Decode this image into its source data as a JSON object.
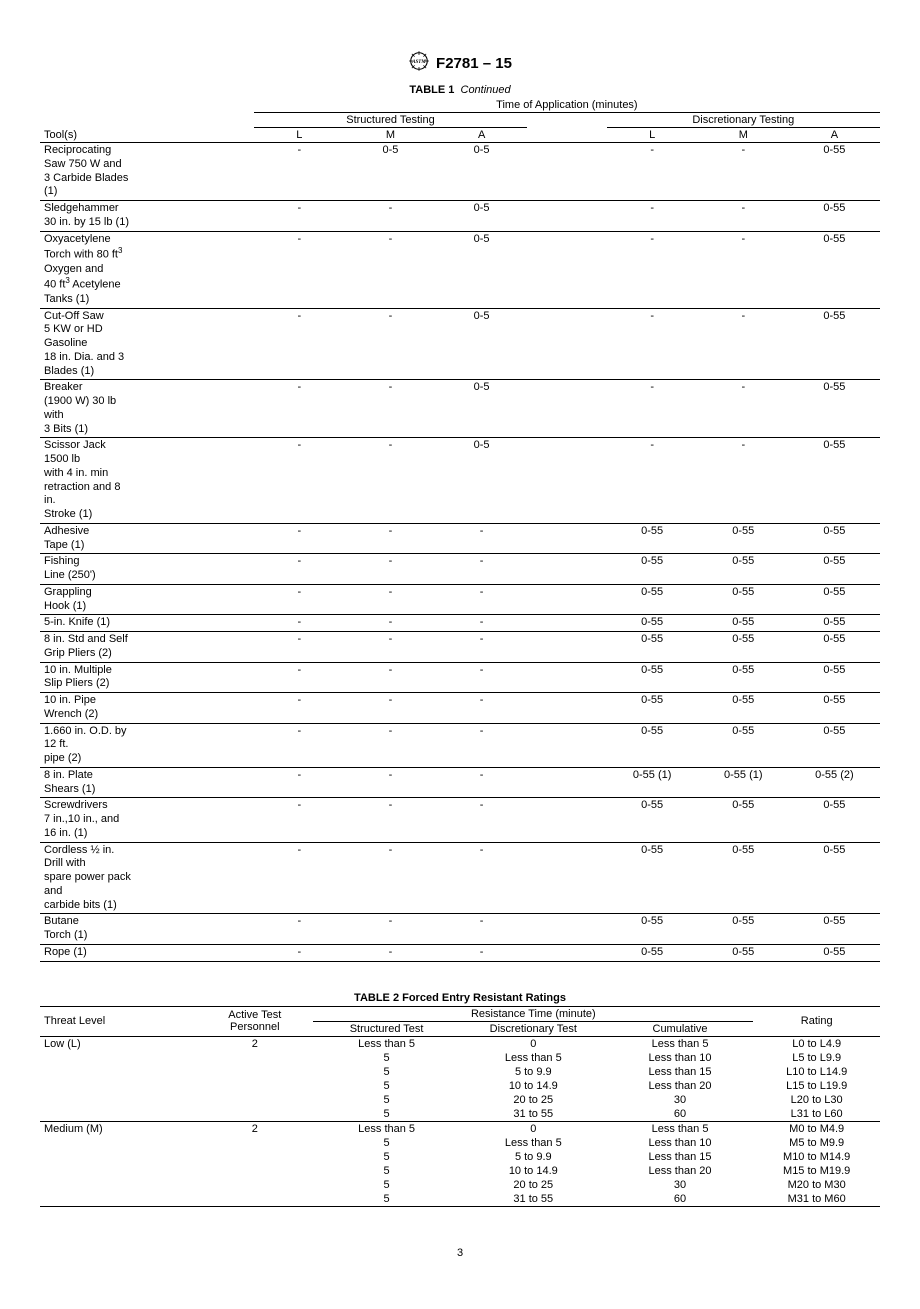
{
  "header": {
    "doc_id": "F2781 – 15"
  },
  "table1": {
    "caption_label": "TABLE 1",
    "caption_cont": "Continued",
    "super_header": "Time of Application (minutes)",
    "group_headers": {
      "structured": "Structured Testing",
      "discretionary": "Discretionary Testing"
    },
    "col_headers": {
      "tool": "Tool(s)",
      "L": "L",
      "M": "M",
      "A": "A"
    },
    "rows": [
      {
        "tool": [
          "Reciprocating",
          "Saw 750 W and",
          "3 Carbide Blades",
          "(1)"
        ],
        "s": [
          "-",
          "0-5",
          "0-5"
        ],
        "d": [
          "-",
          "-",
          "0-55"
        ]
      },
      {
        "tool": [
          "Sledgehammer",
          "30 in. by 15 lb (1)"
        ],
        "s": [
          "-",
          "-",
          "0-5"
        ],
        "d": [
          "-",
          "-",
          "0-55"
        ]
      },
      {
        "tool": [
          "Oxyacetylene",
          "Torch with 80 ft³",
          "Oxygen and",
          "40 ft³ Acetylene",
          "Tanks (1)"
        ],
        "s": [
          "-",
          "-",
          "0-5"
        ],
        "d": [
          "-",
          "-",
          "0-55"
        ]
      },
      {
        "tool": [
          "Cut-Off Saw",
          "5 KW or HD",
          "Gasoline",
          "18 in. Dia. and 3",
          "Blades (1)"
        ],
        "s": [
          "-",
          "-",
          "0-5"
        ],
        "d": [
          "-",
          "-",
          "0-55"
        ]
      },
      {
        "tool": [
          "Breaker",
          "(1900 W) 30 lb",
          "with",
          "3 Bits (1)"
        ],
        "s": [
          "-",
          "-",
          "0-5"
        ],
        "d": [
          "-",
          "-",
          "0-55"
        ]
      },
      {
        "tool": [
          "Scissor Jack",
          "1500 lb",
          "with 4 in. min",
          "retraction and 8",
          "in.",
          "Stroke (1)"
        ],
        "s": [
          "-",
          "-",
          "0-5"
        ],
        "d": [
          "-",
          "-",
          "0-55"
        ]
      },
      {
        "tool": [
          "Adhesive",
          "Tape (1)"
        ],
        "s": [
          "-",
          "-",
          "-"
        ],
        "d": [
          "0-55",
          "0-55",
          "0-55"
        ]
      },
      {
        "tool": [
          "Fishing",
          "Line (250')"
        ],
        "s": [
          "-",
          "-",
          "-"
        ],
        "d": [
          "0-55",
          "0-55",
          "0-55"
        ]
      },
      {
        "tool": [
          "Grappling",
          "Hook (1)"
        ],
        "s": [
          "-",
          "-",
          "-"
        ],
        "d": [
          "0-55",
          "0-55",
          "0-55"
        ]
      },
      {
        "tool": [
          "5-in. Knife (1)"
        ],
        "s": [
          "-",
          "-",
          "-"
        ],
        "d": [
          "0-55",
          "0-55",
          "0-55"
        ]
      },
      {
        "tool": [
          "8 in. Std and Self",
          "Grip Pliers (2)"
        ],
        "s": [
          "-",
          "-",
          "-"
        ],
        "d": [
          "0-55",
          "0-55",
          "0-55"
        ]
      },
      {
        "tool": [
          "10 in. Multiple",
          "Slip Pliers (2)"
        ],
        "s": [
          "-",
          "-",
          "-"
        ],
        "d": [
          "0-55",
          "0-55",
          "0-55"
        ]
      },
      {
        "tool": [
          "10 in. Pipe",
          "Wrench (2)"
        ],
        "s": [
          "-",
          "-",
          "-"
        ],
        "d": [
          "0-55",
          "0-55",
          "0-55"
        ]
      },
      {
        "tool": [
          "1.660 in. O.D. by",
          "12 ft.",
          "pipe (2)"
        ],
        "s": [
          "-",
          "-",
          "-"
        ],
        "d": [
          "0-55",
          "0-55",
          "0-55"
        ]
      },
      {
        "tool": [
          "8 in. Plate",
          "Shears (1)"
        ],
        "s": [
          "-",
          "-",
          "-"
        ],
        "d": [
          "0-55 (1)",
          "0-55 (1)",
          "0-55 (2)"
        ]
      },
      {
        "tool": [
          "Screwdrivers",
          "7 in.,10 in., and",
          "16 in. (1)"
        ],
        "s": [
          "-",
          "-",
          "-"
        ],
        "d": [
          "0-55",
          "0-55",
          "0-55"
        ]
      },
      {
        "tool": [
          "Cordless ½ in.",
          "Drill with",
          "spare power pack",
          "and",
          "carbide bits (1)"
        ],
        "s": [
          "-",
          "-",
          "-"
        ],
        "d": [
          "0-55",
          "0-55",
          "0-55"
        ]
      },
      {
        "tool": [
          "Butane",
          "Torch (1)"
        ],
        "s": [
          "-",
          "-",
          "-"
        ],
        "d": [
          "0-55",
          "0-55",
          "0-55"
        ]
      },
      {
        "tool": [
          "Rope (1)"
        ],
        "s": [
          "-",
          "-",
          "-"
        ],
        "d": [
          "0-55",
          "0-55",
          "0-55"
        ]
      }
    ]
  },
  "table2": {
    "caption": "TABLE 2 Forced Entry Resistant Ratings",
    "headers": {
      "threat": "Threat Level",
      "personnel": "Active Test\nPersonnel",
      "resistance": "Resistance Time (minute)",
      "structured": "Structured Test",
      "discretionary": "Discretionary Test",
      "cumulative": "Cumulative",
      "rating": "Rating"
    },
    "groups": [
      {
        "threat": "Low (L)",
        "personnel": "2",
        "rows": [
          {
            "st": "Less than 5",
            "dt": "0",
            "cum": "Less than 5",
            "rat": "L0 to L4.9"
          },
          {
            "st": "5",
            "dt": "Less than 5",
            "cum": "Less than 10",
            "rat": "L5 to L9.9"
          },
          {
            "st": "5",
            "dt": "5 to 9.9",
            "cum": "Less than 15",
            "rat": "L10 to L14.9"
          },
          {
            "st": "5",
            "dt": "10 to 14.9",
            "cum": "Less than 20",
            "rat": "L15 to L19.9"
          },
          {
            "st": "5",
            "dt": "20 to 25",
            "cum": "30",
            "rat": "L20 to L30"
          },
          {
            "st": "5",
            "dt": "31 to 55",
            "cum": "60",
            "rat": "L31 to L60"
          }
        ]
      },
      {
        "threat": "Medium (M)",
        "personnel": "2",
        "rows": [
          {
            "st": "Less than 5",
            "dt": "0",
            "cum": "Less than 5",
            "rat": "M0 to M4.9"
          },
          {
            "st": "5",
            "dt": "Less than 5",
            "cum": "Less than 10",
            "rat": "M5 to M9.9"
          },
          {
            "st": "5",
            "dt": "5 to 9.9",
            "cum": "Less than 15",
            "rat": "M10 to M14.9"
          },
          {
            "st": "5",
            "dt": "10 to 14.9",
            "cum": "Less than 20",
            "rat": "M15 to M19.9"
          },
          {
            "st": "5",
            "dt": "20 to 25",
            "cum": "30",
            "rat": "M20 to M30"
          },
          {
            "st": "5",
            "dt": "31 to 55",
            "cum": "60",
            "rat": "M31 to M60"
          }
        ]
      }
    ]
  },
  "page_number": "3"
}
